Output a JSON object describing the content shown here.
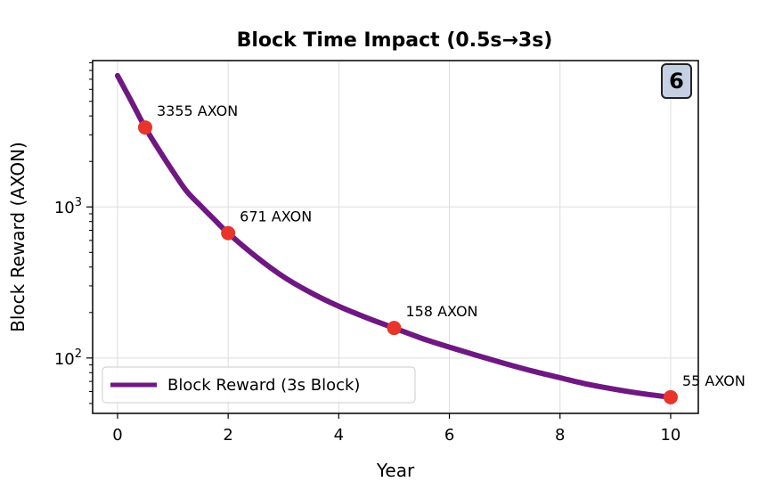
{
  "chart_data": {
    "type": "line",
    "title": "Block Time Impact (0.5s→3s)",
    "xlabel": "Year",
    "ylabel": "Block Reward (AXON)",
    "yscale": "log",
    "xlim": [
      -0.45,
      10.5
    ],
    "ylim": [
      43,
      9300
    ],
    "x_ticks": [
      0,
      2,
      4,
      6,
      8,
      10
    ],
    "y_ticks": [
      {
        "value": 100,
        "base": "10",
        "exp": "2"
      },
      {
        "value": 1000,
        "base": "10",
        "exp": "3"
      }
    ],
    "grid": true,
    "series": [
      {
        "name": "Block Reward (3s Block)",
        "color": "#6f1882",
        "x": [
          0,
          0.25,
          0.5,
          0.75,
          1,
          1.25,
          1.5,
          1.75,
          2,
          2.5,
          3,
          3.5,
          4,
          4.5,
          5,
          5.5,
          6,
          6.5,
          7,
          7.5,
          8,
          8.5,
          9,
          9.5,
          10
        ],
        "y": [
          7400,
          5000,
          3355,
          2380,
          1720,
          1270,
          1020,
          825,
          671,
          470,
          345,
          270,
          220,
          185,
          158,
          135,
          118,
          104,
          92,
          82,
          74,
          67,
          62,
          58,
          55
        ]
      }
    ],
    "markers": {
      "color": "#e8352b",
      "points": [
        {
          "x": 0.5,
          "y": 3355,
          "label": "3355 AXON"
        },
        {
          "x": 2,
          "y": 671,
          "label": "671 AXON"
        },
        {
          "x": 5,
          "y": 158,
          "label": "158 AXON"
        },
        {
          "x": 10,
          "y": 55,
          "label": "55 AXON"
        }
      ]
    },
    "legend": {
      "position": "lower-left",
      "label": "Block Reward (3s Block)"
    },
    "badge": {
      "text": "6",
      "position": "top-right",
      "color": "#c5d0e3"
    }
  }
}
